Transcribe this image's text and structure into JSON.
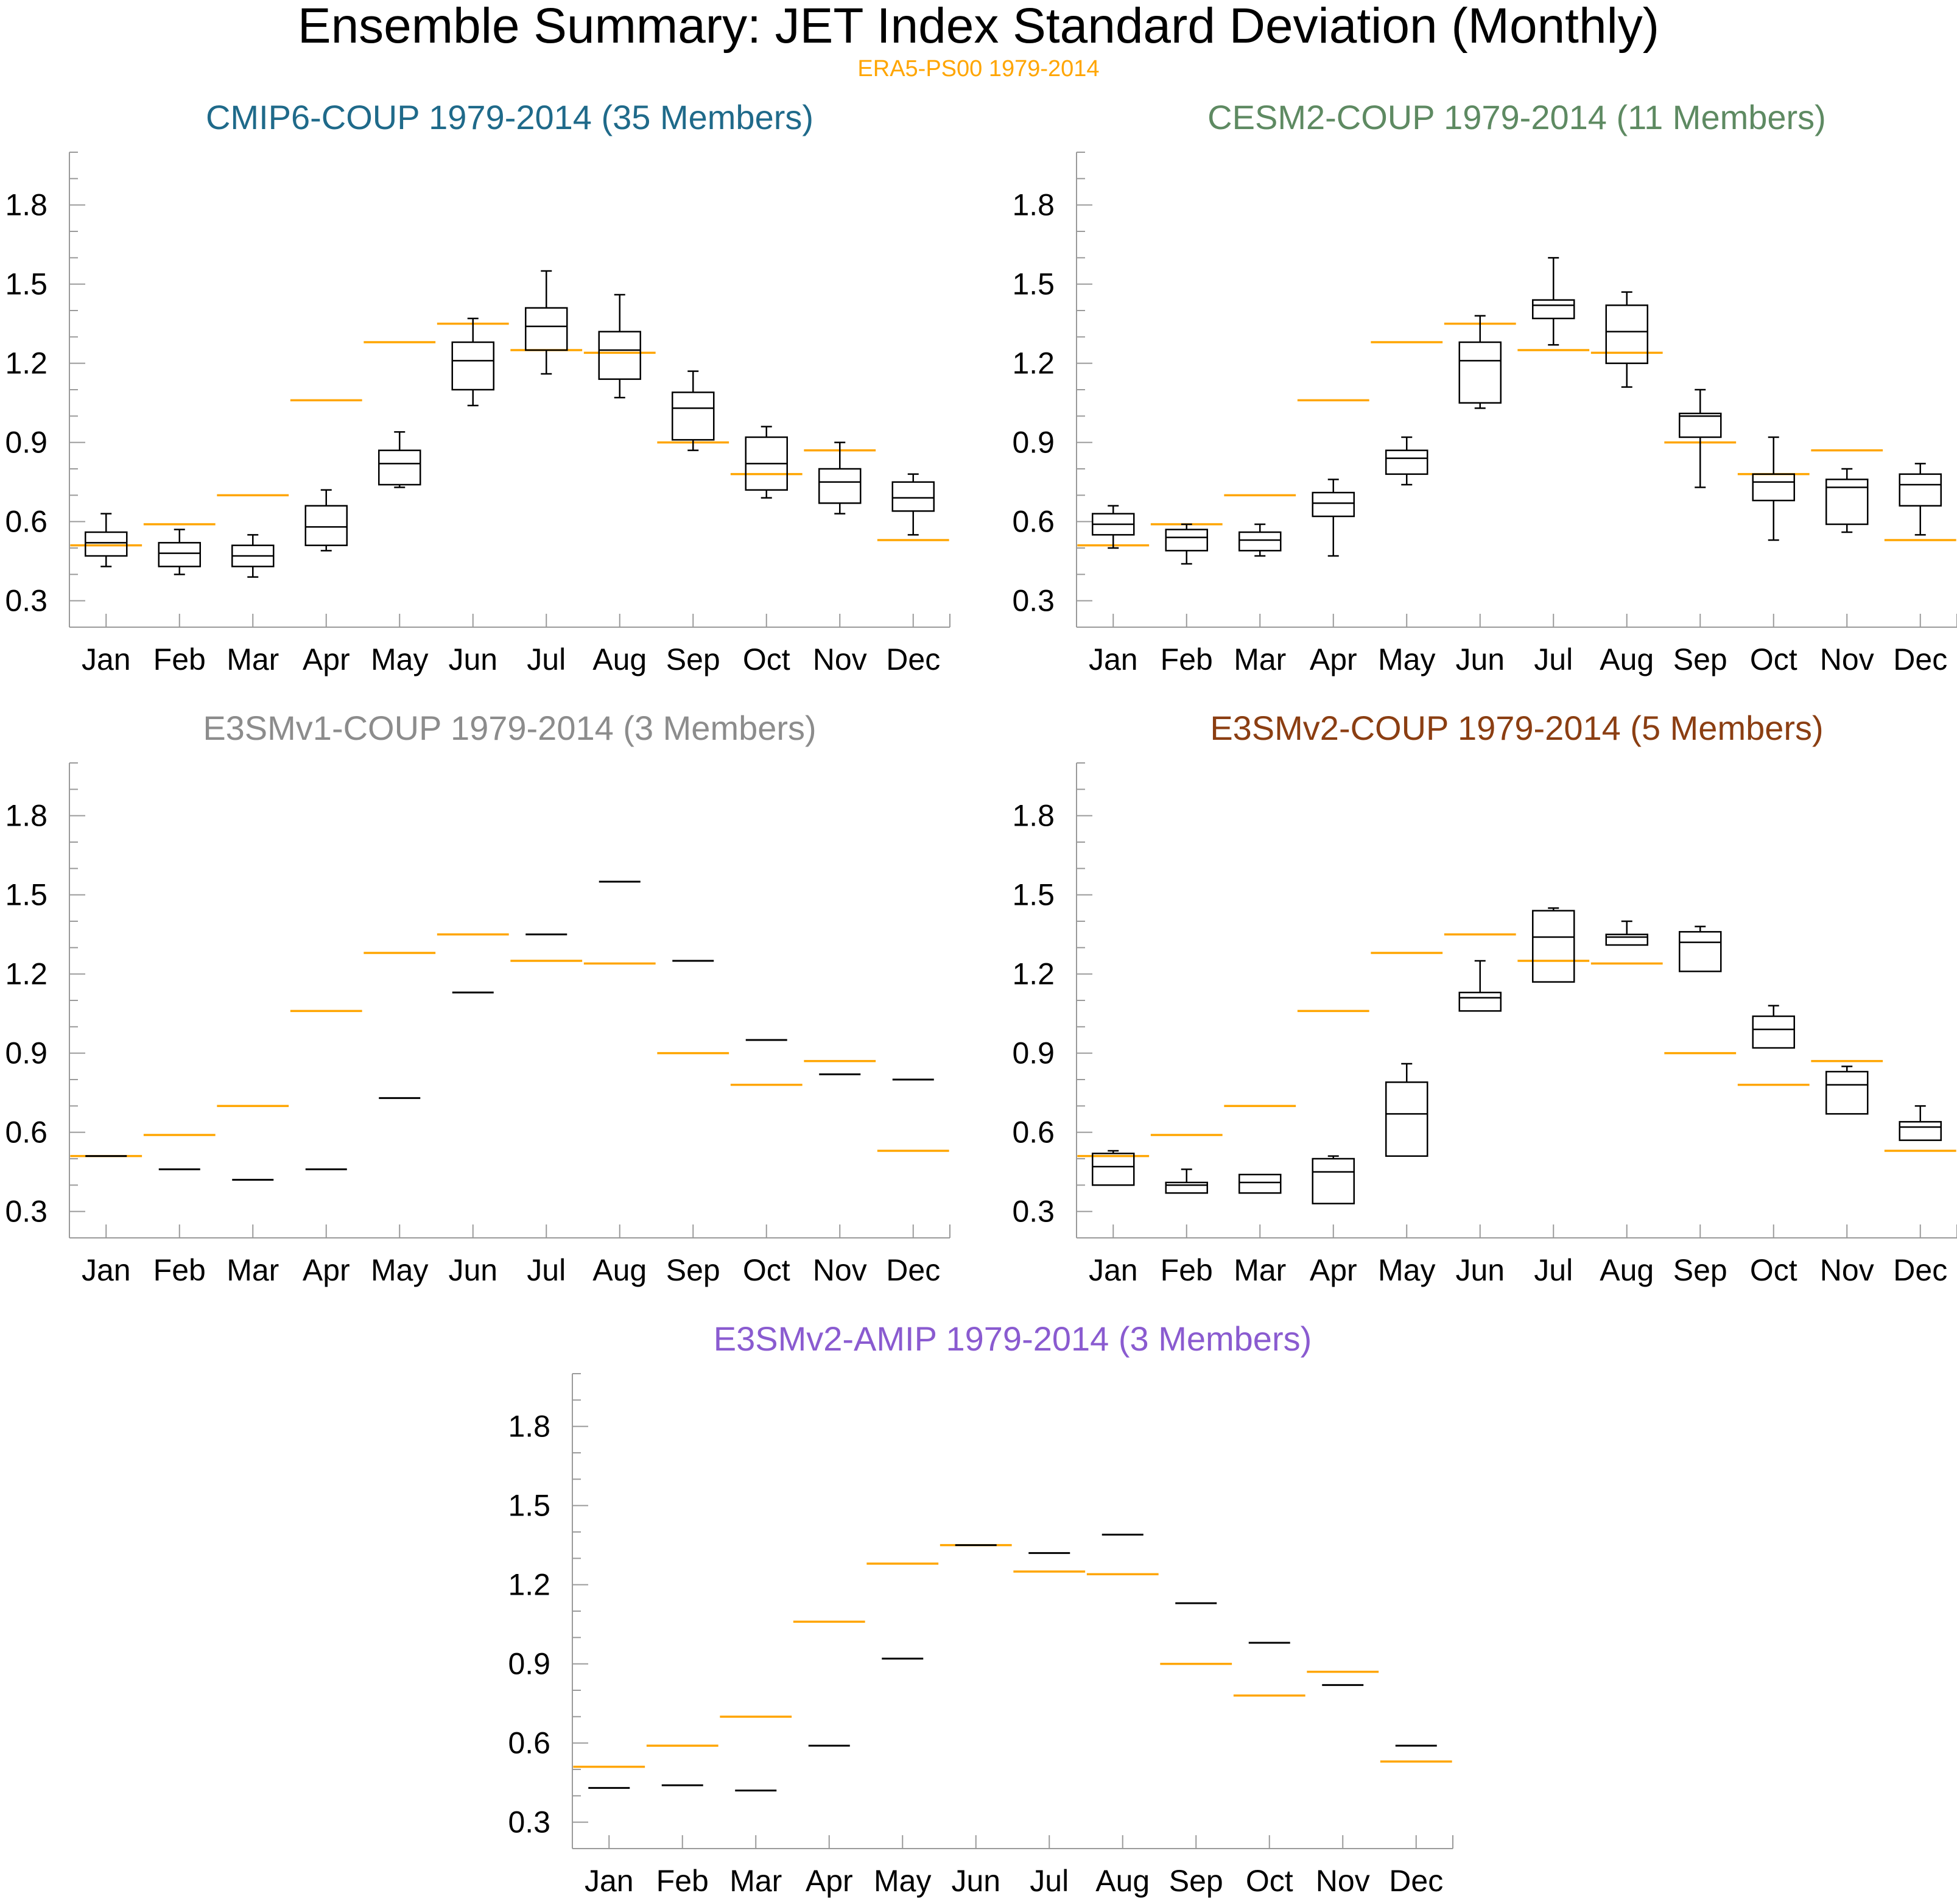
{
  "figure": {
    "title": "Ensemble Summary: JET Index Standard Deviation (Monthly)",
    "reference_label": "ERA5-PS00 1979-2014",
    "reference_color": "#ffa500",
    "box_color": "#000000"
  },
  "chart_data": [
    {
      "type": "box",
      "title": "CMIP6-COUP 1979-2014 (35 Members)",
      "title_color": "#1f6a8a",
      "categories": [
        "Jan",
        "Feb",
        "Mar",
        "Apr",
        "May",
        "Jun",
        "Jul",
        "Aug",
        "Sep",
        "Oct",
        "Nov",
        "Dec"
      ],
      "ylim": [
        0.2,
        2.0
      ],
      "yticks": [
        "0.3",
        "0.6",
        "0.9",
        "1.2",
        "1.5",
        "1.8"
      ],
      "boxes": [
        {
          "min": 0.43,
          "q1": 0.47,
          "median": 0.52,
          "q3": 0.56,
          "max": 0.63
        },
        {
          "min": 0.4,
          "q1": 0.43,
          "median": 0.48,
          "q3": 0.52,
          "max": 0.57
        },
        {
          "min": 0.39,
          "q1": 0.43,
          "median": 0.47,
          "q3": 0.51,
          "max": 0.55
        },
        {
          "min": 0.49,
          "q1": 0.51,
          "median": 0.58,
          "q3": 0.66,
          "max": 0.72
        },
        {
          "min": 0.73,
          "q1": 0.74,
          "median": 0.82,
          "q3": 0.87,
          "max": 0.94
        },
        {
          "min": 1.04,
          "q1": 1.1,
          "median": 1.21,
          "q3": 1.28,
          "max": 1.37
        },
        {
          "min": 1.16,
          "q1": 1.25,
          "median": 1.34,
          "q3": 1.41,
          "max": 1.55
        },
        {
          "min": 1.07,
          "q1": 1.14,
          "median": 1.25,
          "q3": 1.32,
          "max": 1.46
        },
        {
          "min": 0.87,
          "q1": 0.91,
          "median": 1.03,
          "q3": 1.09,
          "max": 1.17
        },
        {
          "min": 0.69,
          "q1": 0.72,
          "median": 0.82,
          "q3": 0.92,
          "max": 0.96
        },
        {
          "min": 0.63,
          "q1": 0.67,
          "median": 0.75,
          "q3": 0.8,
          "max": 0.9
        },
        {
          "min": 0.55,
          "q1": 0.64,
          "median": 0.69,
          "q3": 0.75,
          "max": 0.78
        }
      ],
      "reference": [
        0.51,
        0.59,
        0.7,
        1.06,
        1.28,
        1.35,
        1.25,
        1.24,
        0.9,
        0.78,
        0.87,
        0.53
      ]
    },
    {
      "type": "box",
      "title": "CESM2-COUP 1979-2014 (11 Members)",
      "title_color": "#5e8a62",
      "categories": [
        "Jan",
        "Feb",
        "Mar",
        "Apr",
        "May",
        "Jun",
        "Jul",
        "Aug",
        "Sep",
        "Oct",
        "Nov",
        "Dec"
      ],
      "ylim": [
        0.2,
        2.0
      ],
      "yticks": [
        "0.3",
        "0.6",
        "0.9",
        "1.2",
        "1.5",
        "1.8"
      ],
      "boxes": [
        {
          "min": 0.5,
          "q1": 0.55,
          "median": 0.59,
          "q3": 0.63,
          "max": 0.66
        },
        {
          "min": 0.44,
          "q1": 0.49,
          "median": 0.54,
          "q3": 0.57,
          "max": 0.59
        },
        {
          "min": 0.47,
          "q1": 0.49,
          "median": 0.53,
          "q3": 0.56,
          "max": 0.59
        },
        {
          "min": 0.47,
          "q1": 0.62,
          "median": 0.67,
          "q3": 0.71,
          "max": 0.76
        },
        {
          "min": 0.74,
          "q1": 0.78,
          "median": 0.84,
          "q3": 0.87,
          "max": 0.92
        },
        {
          "min": 1.03,
          "q1": 1.05,
          "median": 1.21,
          "q3": 1.28,
          "max": 1.38
        },
        {
          "min": 1.27,
          "q1": 1.37,
          "median": 1.42,
          "q3": 1.44,
          "max": 1.6
        },
        {
          "min": 1.11,
          "q1": 1.2,
          "median": 1.32,
          "q3": 1.42,
          "max": 1.47
        },
        {
          "min": 0.73,
          "q1": 0.92,
          "median": 1.0,
          "q3": 1.01,
          "max": 1.1
        },
        {
          "min": 0.53,
          "q1": 0.68,
          "median": 0.75,
          "q3": 0.78,
          "max": 0.92
        },
        {
          "min": 0.56,
          "q1": 0.59,
          "median": 0.73,
          "q3": 0.76,
          "max": 0.8
        },
        {
          "min": 0.55,
          "q1": 0.66,
          "median": 0.74,
          "q3": 0.78,
          "max": 0.82
        }
      ],
      "reference": [
        0.51,
        0.59,
        0.7,
        1.06,
        1.28,
        1.35,
        1.25,
        1.24,
        0.9,
        0.78,
        0.87,
        0.53
      ]
    },
    {
      "type": "box",
      "title": "E3SMv1-COUP 1979-2014 (3 Members)",
      "title_color": "#8c8c8c",
      "categories": [
        "Jan",
        "Feb",
        "Mar",
        "Apr",
        "May",
        "Jun",
        "Jul",
        "Aug",
        "Sep",
        "Oct",
        "Nov",
        "Dec"
      ],
      "ylim": [
        0.2,
        2.0
      ],
      "yticks": [
        "0.3",
        "0.6",
        "0.9",
        "1.2",
        "1.5",
        "1.8"
      ],
      "boxes": [
        {
          "min": 0.51,
          "q1": 0.51,
          "median": 0.51,
          "q3": 0.51,
          "max": 0.51
        },
        {
          "min": 0.46,
          "q1": 0.46,
          "median": 0.46,
          "q3": 0.46,
          "max": 0.46
        },
        {
          "min": 0.42,
          "q1": 0.42,
          "median": 0.42,
          "q3": 0.42,
          "max": 0.42
        },
        {
          "min": 0.46,
          "q1": 0.46,
          "median": 0.46,
          "q3": 0.46,
          "max": 0.46
        },
        {
          "min": 0.73,
          "q1": 0.73,
          "median": 0.73,
          "q3": 0.73,
          "max": 0.73
        },
        {
          "min": 1.13,
          "q1": 1.13,
          "median": 1.13,
          "q3": 1.13,
          "max": 1.13
        },
        {
          "min": 1.35,
          "q1": 1.35,
          "median": 1.35,
          "q3": 1.35,
          "max": 1.35
        },
        {
          "min": 1.55,
          "q1": 1.55,
          "median": 1.55,
          "q3": 1.55,
          "max": 1.55
        },
        {
          "min": 1.25,
          "q1": 1.25,
          "median": 1.25,
          "q3": 1.25,
          "max": 1.25
        },
        {
          "min": 0.95,
          "q1": 0.95,
          "median": 0.95,
          "q3": 0.95,
          "max": 0.95
        },
        {
          "min": 0.82,
          "q1": 0.82,
          "median": 0.82,
          "q3": 0.82,
          "max": 0.82
        },
        {
          "min": 0.8,
          "q1": 0.8,
          "median": 0.8,
          "q3": 0.8,
          "max": 0.8
        }
      ],
      "reference": [
        0.51,
        0.59,
        0.7,
        1.06,
        1.28,
        1.35,
        1.25,
        1.24,
        0.9,
        0.78,
        0.87,
        0.53
      ]
    },
    {
      "type": "box",
      "title": "E3SMv2-COUP 1979-2014 (5 Members)",
      "title_color": "#8b3e12",
      "categories": [
        "Jan",
        "Feb",
        "Mar",
        "Apr",
        "May",
        "Jun",
        "Jul",
        "Aug",
        "Sep",
        "Oct",
        "Nov",
        "Dec"
      ],
      "ylim": [
        0.2,
        2.0
      ],
      "yticks": [
        "0.3",
        "0.6",
        "0.9",
        "1.2",
        "1.5",
        "1.8"
      ],
      "boxes": [
        {
          "min": 0.4,
          "q1": 0.4,
          "median": 0.47,
          "q3": 0.52,
          "max": 0.53
        },
        {
          "min": 0.37,
          "q1": 0.37,
          "median": 0.4,
          "q3": 0.41,
          "max": 0.46
        },
        {
          "min": 0.37,
          "q1": 0.37,
          "median": 0.41,
          "q3": 0.44,
          "max": 0.44
        },
        {
          "min": 0.33,
          "q1": 0.33,
          "median": 0.45,
          "q3": 0.5,
          "max": 0.51
        },
        {
          "min": 0.51,
          "q1": 0.51,
          "median": 0.67,
          "q3": 0.79,
          "max": 0.86
        },
        {
          "min": 1.06,
          "q1": 1.06,
          "median": 1.11,
          "q3": 1.13,
          "max": 1.25
        },
        {
          "min": 1.17,
          "q1": 1.17,
          "median": 1.34,
          "q3": 1.44,
          "max": 1.45
        },
        {
          "min": 1.31,
          "q1": 1.31,
          "median": 1.34,
          "q3": 1.35,
          "max": 1.4
        },
        {
          "min": 1.21,
          "q1": 1.21,
          "median": 1.32,
          "q3": 1.36,
          "max": 1.38
        },
        {
          "min": 0.92,
          "q1": 0.92,
          "median": 0.99,
          "q3": 1.04,
          "max": 1.08
        },
        {
          "min": 0.67,
          "q1": 0.67,
          "median": 0.78,
          "q3": 0.83,
          "max": 0.85
        },
        {
          "min": 0.57,
          "q1": 0.57,
          "median": 0.62,
          "q3": 0.64,
          "max": 0.7
        }
      ],
      "reference": [
        0.51,
        0.59,
        0.7,
        1.06,
        1.28,
        1.35,
        1.25,
        1.24,
        0.9,
        0.78,
        0.87,
        0.53
      ]
    },
    {
      "type": "box",
      "title": "E3SMv2-AMIP 1979-2014 (3 Members)",
      "title_color": "#8a5bd0",
      "categories": [
        "Jan",
        "Feb",
        "Mar",
        "Apr",
        "May",
        "Jun",
        "Jul",
        "Aug",
        "Sep",
        "Oct",
        "Nov",
        "Dec"
      ],
      "ylim": [
        0.2,
        2.0
      ],
      "yticks": [
        "0.3",
        "0.6",
        "0.9",
        "1.2",
        "1.5",
        "1.8"
      ],
      "boxes": [
        {
          "min": 0.43,
          "q1": 0.43,
          "median": 0.43,
          "q3": 0.43,
          "max": 0.43
        },
        {
          "min": 0.44,
          "q1": 0.44,
          "median": 0.44,
          "q3": 0.44,
          "max": 0.44
        },
        {
          "min": 0.42,
          "q1": 0.42,
          "median": 0.42,
          "q3": 0.42,
          "max": 0.42
        },
        {
          "min": 0.59,
          "q1": 0.59,
          "median": 0.59,
          "q3": 0.59,
          "max": 0.59
        },
        {
          "min": 0.92,
          "q1": 0.92,
          "median": 0.92,
          "q3": 0.92,
          "max": 0.92
        },
        {
          "min": 1.35,
          "q1": 1.35,
          "median": 1.35,
          "q3": 1.35,
          "max": 1.35
        },
        {
          "min": 1.32,
          "q1": 1.32,
          "median": 1.32,
          "q3": 1.32,
          "max": 1.32
        },
        {
          "min": 1.39,
          "q1": 1.39,
          "median": 1.39,
          "q3": 1.39,
          "max": 1.39
        },
        {
          "min": 1.13,
          "q1": 1.13,
          "median": 1.13,
          "q3": 1.13,
          "max": 1.13
        },
        {
          "min": 0.98,
          "q1": 0.98,
          "median": 0.98,
          "q3": 0.98,
          "max": 0.98
        },
        {
          "min": 0.82,
          "q1": 0.82,
          "median": 0.82,
          "q3": 0.82,
          "max": 0.82
        },
        {
          "min": 0.59,
          "q1": 0.59,
          "median": 0.59,
          "q3": 0.59,
          "max": 0.59
        }
      ],
      "reference": [
        0.51,
        0.59,
        0.7,
        1.06,
        1.28,
        1.35,
        1.25,
        1.24,
        0.9,
        0.78,
        0.87,
        0.53
      ]
    }
  ]
}
